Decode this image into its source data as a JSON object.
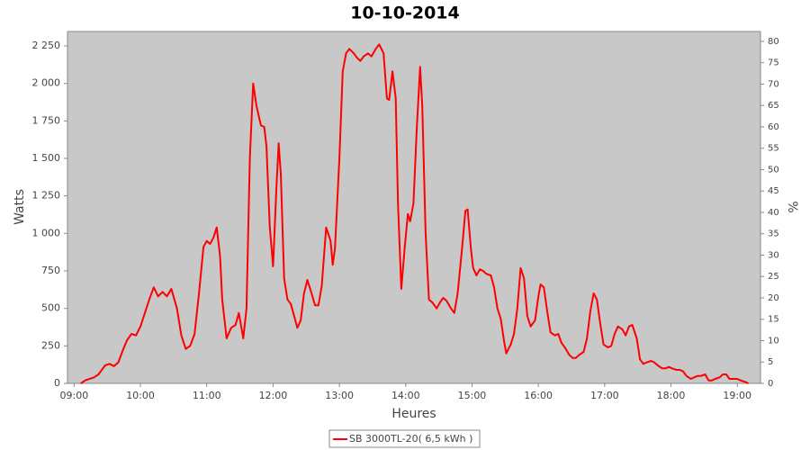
{
  "chart_data": {
    "type": "line",
    "title": "10-10-2014",
    "xlabel": "Heures",
    "ylabel": "Watts",
    "y2label": "%",
    "x": [
      "09:06",
      "09:10",
      "09:18",
      "09:22",
      "09:28",
      "09:32",
      "09:36",
      "09:40",
      "09:44",
      "09:48",
      "09:52",
      "09:56",
      "10:00",
      "10:04",
      "10:08",
      "10:12",
      "10:16",
      "10:20",
      "10:24",
      "10:28",
      "10:33",
      "10:37",
      "10:41",
      "10:45",
      "10:49",
      "10:53",
      "10:57",
      "11:00",
      "11:03",
      "11:06",
      "11:09",
      "11:12",
      "11:14",
      "11:18",
      "11:22",
      "11:26",
      "11:29",
      "11:33",
      "11:36",
      "11:39",
      "11:42",
      "11:45",
      "11:49",
      "11:52",
      "11:54",
      "11:57",
      "12:00",
      "12:03",
      "12:05",
      "12:07",
      "12:10",
      "12:13",
      "12:16",
      "12:19",
      "12:22",
      "12:25",
      "12:28",
      "12:31",
      "12:34",
      "12:38",
      "12:41",
      "12:44",
      "12:48",
      "12:52",
      "12:54",
      "12:56",
      "13:00",
      "13:03",
      "13:06",
      "13:09",
      "13:13",
      "13:16",
      "13:19",
      "13:22",
      "13:26",
      "13:29",
      "13:33",
      "13:36",
      "13:40",
      "13:43",
      "13:45",
      "13:48",
      "13:51",
      "13:53",
      "13:56",
      "13:59",
      "14:02",
      "14:04",
      "14:07",
      "14:10",
      "14:13",
      "14:15",
      "14:18",
      "14:21",
      "14:24",
      "14:28",
      "14:31",
      "14:34",
      "14:37",
      "14:41",
      "14:44",
      "14:47",
      "14:51",
      "14:54",
      "14:56",
      "14:59",
      "15:01",
      "15:04",
      "15:07",
      "15:10",
      "15:13",
      "15:17",
      "15:20",
      "15:23",
      "15:26",
      "15:29",
      "15:31",
      "15:35",
      "15:38",
      "15:41",
      "15:44",
      "15:47",
      "15:50",
      "15:53",
      "15:57",
      "16:00",
      "16:02",
      "16:05",
      "16:08",
      "16:11",
      "16:15",
      "16:18",
      "16:21",
      "16:24",
      "16:28",
      "16:31",
      "16:34",
      "16:37",
      "16:41",
      "16:44",
      "16:47",
      "16:50",
      "16:53",
      "16:56",
      "16:59",
      "17:03",
      "17:06",
      "17:09",
      "17:12",
      "17:16",
      "17:19",
      "17:22",
      "17:25",
      "17:29",
      "17:32",
      "17:35",
      "17:38",
      "17:42",
      "17:45",
      "17:48",
      "17:52",
      "17:55",
      "17:58",
      "18:01",
      "18:05",
      "18:08",
      "18:11",
      "18:14",
      "18:18",
      "18:21",
      "18:24",
      "18:27",
      "18:31",
      "18:34",
      "18:37",
      "18:40",
      "18:44",
      "18:47",
      "18:50",
      "18:53",
      "18:57",
      "19:00",
      "19:03",
      "19:07",
      "19:10"
    ],
    "series": [
      {
        "name": "SB 3000TL-20( 6,5 kWh )",
        "color": "#ff0000",
        "values": [
          0,
          20,
          40,
          60,
          120,
          130,
          115,
          140,
          220,
          290,
          330,
          320,
          380,
          470,
          560,
          640,
          580,
          610,
          580,
          630,
          500,
          320,
          230,
          250,
          330,
          600,
          910,
          950,
          930,
          970,
          1040,
          850,
          560,
          300,
          370,
          390,
          470,
          300,
          500,
          1500,
          2000,
          1850,
          1720,
          1710,
          1580,
          1050,
          780,
          1300,
          1600,
          1400,
          700,
          560,
          530,
          450,
          370,
          420,
          600,
          690,
          620,
          520,
          520,
          650,
          1040,
          950,
          790,
          900,
          1500,
          2080,
          2200,
          2230,
          2200,
          2170,
          2150,
          2180,
          2200,
          2180,
          2230,
          2260,
          2200,
          1900,
          1890,
          2080,
          1900,
          1200,
          630,
          900,
          1130,
          1080,
          1200,
          1700,
          2110,
          1850,
          1000,
          560,
          540,
          500,
          540,
          570,
          550,
          500,
          470,
          600,
          900,
          1150,
          1160,
          900,
          770,
          720,
          760,
          750,
          730,
          720,
          640,
          500,
          430,
          280,
          200,
          260,
          330,
          500,
          770,
          700,
          450,
          380,
          420,
          580,
          660,
          640,
          480,
          340,
          320,
          330,
          270,
          240,
          190,
          170,
          170,
          190,
          210,
          300,
          480,
          600,
          560,
          400,
          260,
          240,
          250,
          330,
          380,
          360,
          320,
          380,
          390,
          300,
          160,
          130,
          140,
          150,
          140,
          120,
          100,
          100,
          110,
          100,
          90,
          90,
          80,
          50,
          30,
          40,
          50,
          50,
          60,
          20,
          20,
          30,
          40,
          60,
          60,
          30,
          30,
          30,
          20,
          10,
          0
        ]
      }
    ],
    "xlim": [
      "08:54",
      "19:21"
    ],
    "xticks": [
      "09:00",
      "10:00",
      "11:00",
      "12:00",
      "13:00",
      "14:00",
      "15:00",
      "16:00",
      "17:00",
      "18:00",
      "19:00"
    ],
    "ylim": [
      0,
      2346
    ],
    "yticks": [
      0,
      250,
      500,
      750,
      {
        "value": 1000,
        "label": "1 000"
      },
      {
        "value": 1250,
        "label": "1 250"
      },
      {
        "value": 1500,
        "label": "1 500"
      },
      {
        "value": 1750,
        "label": "1 750"
      },
      {
        "value": 2000,
        "label": "2 000"
      },
      {
        "value": 2250,
        "label": "2 250"
      }
    ],
    "y2lim": [
      0,
      82.3
    ],
    "y2ticks": [
      0,
      5,
      10,
      15,
      20,
      25,
      30,
      35,
      40,
      45,
      50,
      55,
      60,
      65,
      70,
      75,
      80
    ],
    "grid": false,
    "legend": "bottom"
  }
}
